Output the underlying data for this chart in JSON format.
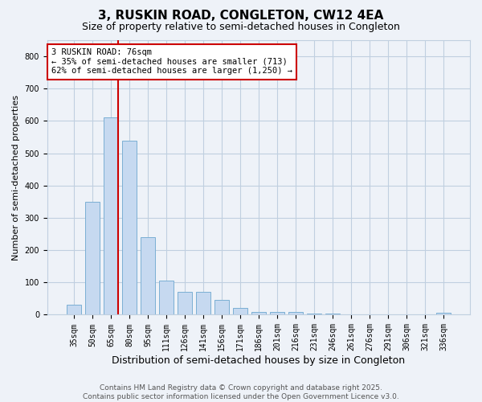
{
  "title": "3, RUSKIN ROAD, CONGLETON, CW12 4EA",
  "subtitle": "Size of property relative to semi-detached houses in Congleton",
  "xlabel": "Distribution of semi-detached houses by size in Congleton",
  "ylabel": "Number of semi-detached properties",
  "categories": [
    "35sqm",
    "50sqm",
    "65sqm",
    "80sqm",
    "95sqm",
    "111sqm",
    "126sqm",
    "141sqm",
    "156sqm",
    "171sqm",
    "186sqm",
    "201sqm",
    "216sqm",
    "231sqm",
    "246sqm",
    "261sqm",
    "276sqm",
    "291sqm",
    "306sqm",
    "321sqm",
    "336sqm"
  ],
  "values": [
    30,
    350,
    610,
    540,
    240,
    105,
    70,
    70,
    47,
    20,
    8,
    8,
    8,
    4,
    4,
    2,
    2,
    2,
    2,
    2,
    5
  ],
  "bar_color": "#c6d9f0",
  "bar_edge_color": "#7bafd4",
  "vline_color": "#cc0000",
  "ylim": [
    0,
    850
  ],
  "yticks": [
    0,
    100,
    200,
    300,
    400,
    500,
    600,
    700,
    800
  ],
  "annotation_text": "3 RUSKIN ROAD: 76sqm\n← 35% of semi-detached houses are smaller (713)\n62% of semi-detached houses are larger (1,250) →",
  "annotation_box_color": "#ffffff",
  "annotation_box_edge": "#cc0000",
  "footer_line1": "Contains HM Land Registry data © Crown copyright and database right 2025.",
  "footer_line2": "Contains public sector information licensed under the Open Government Licence v3.0.",
  "bg_color": "#eef2f8",
  "grid_color": "#c0cfe0",
  "title_fontsize": 11,
  "subtitle_fontsize": 9,
  "ylabel_fontsize": 8,
  "xlabel_fontsize": 9,
  "tick_fontsize": 7,
  "annot_fontsize": 7.5,
  "footer_fontsize": 6.5
}
